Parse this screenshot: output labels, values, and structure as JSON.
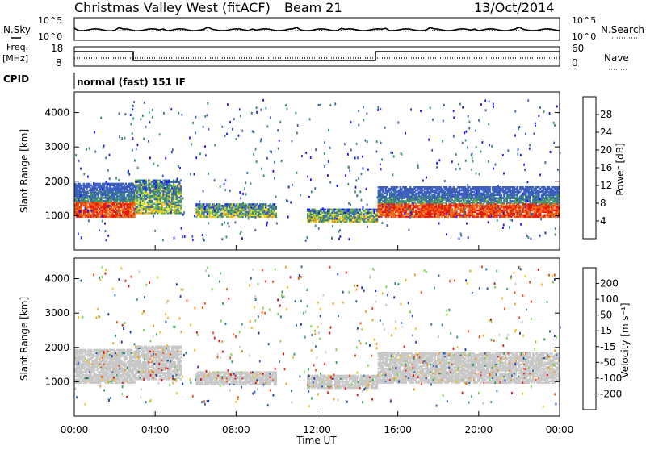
{
  "header": {
    "station": "Christmas Valley West (fitACF)",
    "beam": "Beam 21",
    "date": "13/Oct/2014"
  },
  "strips": {
    "nsky_label": "N.Sky",
    "nsearch_label": "N.Search",
    "freq_label_line1": "Freq.",
    "freq_label_line2": "[MHz]",
    "nave_label": "Nave",
    "cpid_label": "CPID",
    "cpid_value": "normal (fast) 151 IF",
    "noise_ticks_left": [
      "10^5",
      "10^0"
    ],
    "noise_ticks_right": [
      "10^5",
      "10^0"
    ],
    "freq_ticks_left": [
      "18",
      "8"
    ],
    "freq_ticks_right": [
      "60",
      "0"
    ]
  },
  "chart_data": [
    {
      "type": "heatmap",
      "panel": "power",
      "xlabel": "",
      "ylabel": "Slant Range [km]",
      "x_ticks": [
        "00:00",
        "04:00",
        "08:00",
        "12:00",
        "16:00",
        "20:00",
        "00:00"
      ],
      "y_ticks": [
        "1000",
        "2000",
        "3000",
        "4000"
      ],
      "ylim": [
        0,
        4600
      ],
      "colorbar": {
        "label": "Power [dB]",
        "ticks": [
          "4",
          "8",
          "12",
          "16",
          "20",
          "24",
          "28"
        ],
        "colors": [
          "#1a1aff",
          "#3c5fc0",
          "#3a8a76",
          "#6fb54c",
          "#e8dc1e",
          "#f5a21a",
          "#f06a10",
          "#e81a10"
        ]
      },
      "echo_regions": [
        {
          "t0": 0.0,
          "t1": 3.0,
          "r0": 1000,
          "r1": 2000,
          "level": "high"
        },
        {
          "t0": 3.0,
          "t1": 5.3,
          "r0": 1100,
          "r1": 2100,
          "level": "mid"
        },
        {
          "t0": 6.0,
          "t1": 10.0,
          "r0": 1000,
          "r1": 1400,
          "level": "mid"
        },
        {
          "t0": 11.5,
          "t1": 15.0,
          "r0": 850,
          "r1": 1250,
          "level": "mid"
        },
        {
          "t0": 15.0,
          "t1": 24.0,
          "r0": 1000,
          "r1": 1900,
          "level": "high"
        }
      ]
    },
    {
      "type": "heatmap",
      "panel": "velocity",
      "xlabel": "Time UT",
      "ylabel": "Slant Range [km]",
      "x_ticks": [
        "00:00",
        "04:00",
        "08:00",
        "12:00",
        "16:00",
        "20:00",
        "00:00"
      ],
      "y_ticks": [
        "1000",
        "2000",
        "3000",
        "4000"
      ],
      "ylim": [
        0,
        4600
      ],
      "colorbar": {
        "label": "Velocity [m s⁻¹]",
        "ticks": [
          "200",
          "100",
          "50",
          "15",
          "-15",
          "-50",
          "-100",
          "-200"
        ],
        "colors": [
          "#1a3cb8",
          "#2f6ab0",
          "#30a050",
          "#7cd24a",
          "#c8c8c8",
          "#f0c020",
          "#f09a18",
          "#f05010",
          "#e81010"
        ]
      },
      "echo_regions": [
        {
          "t0": 0.0,
          "t1": 3.0,
          "r0": 1000,
          "r1": 2000,
          "level": "ground"
        },
        {
          "t0": 3.0,
          "t1": 5.3,
          "r0": 1100,
          "r1": 2100,
          "level": "ground"
        },
        {
          "t0": 6.0,
          "t1": 10.0,
          "r0": 950,
          "r1": 1350,
          "level": "ground"
        },
        {
          "t0": 11.5,
          "t1": 15.0,
          "r0": 850,
          "r1": 1250,
          "level": "ground"
        },
        {
          "t0": 15.0,
          "t1": 24.0,
          "r0": 1000,
          "r1": 1900,
          "level": "ground"
        }
      ]
    }
  ]
}
